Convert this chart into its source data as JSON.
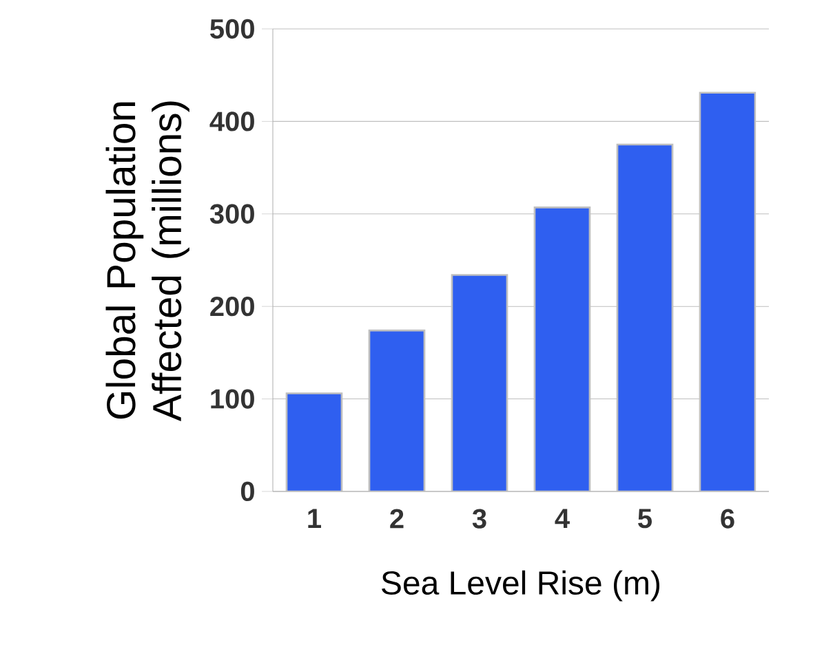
{
  "chart_data": {
    "type": "bar",
    "xlabel": "Sea Level Rise (m)",
    "ylabel": "Global Population Affected (millions)",
    "categories": [
      "1",
      "2",
      "3",
      "4",
      "5",
      "6"
    ],
    "values": [
      106,
      174,
      234,
      307,
      375,
      431
    ],
    "color": "#2f5ff0",
    "ylim": [
      0,
      500
    ],
    "yticks": [
      0,
      100,
      200,
      300,
      400,
      500
    ],
    "grid": "y"
  }
}
